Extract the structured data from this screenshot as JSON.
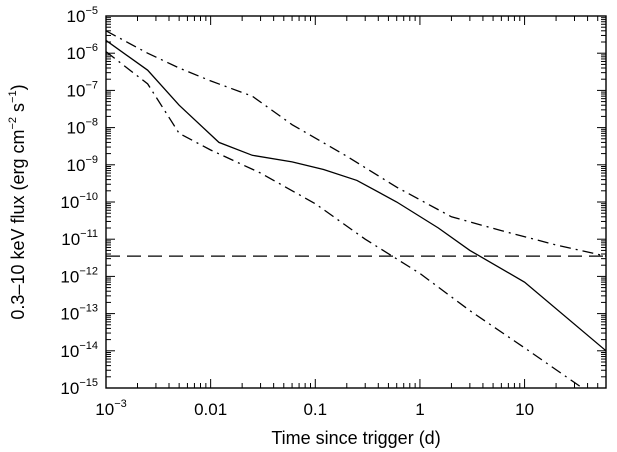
{
  "chart_data": {
    "type": "line",
    "title": "",
    "xlabel": "Time since trigger (d)",
    "ylabel": {
      "parts": [
        {
          "t": "0.3–10 keV flux (erg cm"
        },
        {
          "t": "−2",
          "sup": true
        },
        {
          "t": " s"
        },
        {
          "t": "−1",
          "sup": true
        },
        {
          "t": ")"
        }
      ]
    },
    "xscale": "log",
    "yscale": "log",
    "xlim": [
      0.001,
      60
    ],
    "ylim": [
      1e-15,
      1e-05
    ],
    "grid": false,
    "x_tick_labels": [
      {
        "value": 0.001,
        "base": "10",
        "exp": "−3"
      },
      {
        "value": 0.01,
        "base": "0.01",
        "exp": ""
      },
      {
        "value": 0.1,
        "base": "0.1",
        "exp": ""
      },
      {
        "value": 1,
        "base": "1",
        "exp": ""
      },
      {
        "value": 10,
        "base": "10",
        "exp": ""
      }
    ],
    "y_tick_labels": [
      {
        "value": 1e-05,
        "base": "10",
        "exp": "−5"
      },
      {
        "value": 1e-06,
        "base": "10",
        "exp": "−6"
      },
      {
        "value": 1e-07,
        "base": "10",
        "exp": "−7"
      },
      {
        "value": 1e-08,
        "base": "10",
        "exp": "−8"
      },
      {
        "value": 1e-09,
        "base": "10",
        "exp": "−9"
      },
      {
        "value": 1e-10,
        "base": "10",
        "exp": "−10"
      },
      {
        "value": 1e-11,
        "base": "10",
        "exp": "−11"
      },
      {
        "value": 1e-12,
        "base": "10",
        "exp": "−12"
      },
      {
        "value": 1e-13,
        "base": "10",
        "exp": "−13"
      },
      {
        "value": 1e-14,
        "base": "10",
        "exp": "−14"
      },
      {
        "value": 1e-15,
        "base": "10",
        "exp": "−15"
      }
    ],
    "series": [
      {
        "style": "solid",
        "x": [
          0.001,
          0.0025,
          0.005,
          0.012,
          0.025,
          0.06,
          0.12,
          0.25,
          0.6,
          1.5,
          3,
          10,
          60
        ],
        "y": [
          2.2e-06,
          3.5e-07,
          4e-08,
          4e-09,
          1.8e-09,
          1.2e-09,
          7.5e-10,
          3.8e-10,
          1e-10,
          2e-11,
          5e-12,
          7e-13,
          1e-14
        ]
      },
      {
        "style": "dashdot",
        "x": [
          0.001,
          0.0025,
          0.005,
          0.01,
          0.025,
          0.06,
          0.2,
          0.6,
          2,
          6,
          20,
          60
        ],
        "y": [
          4e-06,
          1e-06,
          4e-07,
          1.8e-07,
          7e-08,
          1.2e-08,
          1.7e-09,
          2.5e-10,
          4e-11,
          1.7e-11,
          7e-12,
          3.5e-12
        ]
      },
      {
        "style": "dashdot",
        "x": [
          0.001,
          0.0025,
          0.005,
          0.01,
          0.03,
          0.1,
          0.3,
          1,
          3,
          10,
          40
        ],
        "y": [
          1.1e-06,
          1.5e-07,
          7e-09,
          2.5e-09,
          6e-10,
          9e-11,
          1e-11,
          1.2e-12,
          1.2e-13,
          1.2e-14,
          8e-16
        ]
      },
      {
        "style": "dashed",
        "x": [
          0.001,
          60
        ],
        "y": [
          3.5e-12,
          3.5e-12
        ]
      }
    ]
  }
}
